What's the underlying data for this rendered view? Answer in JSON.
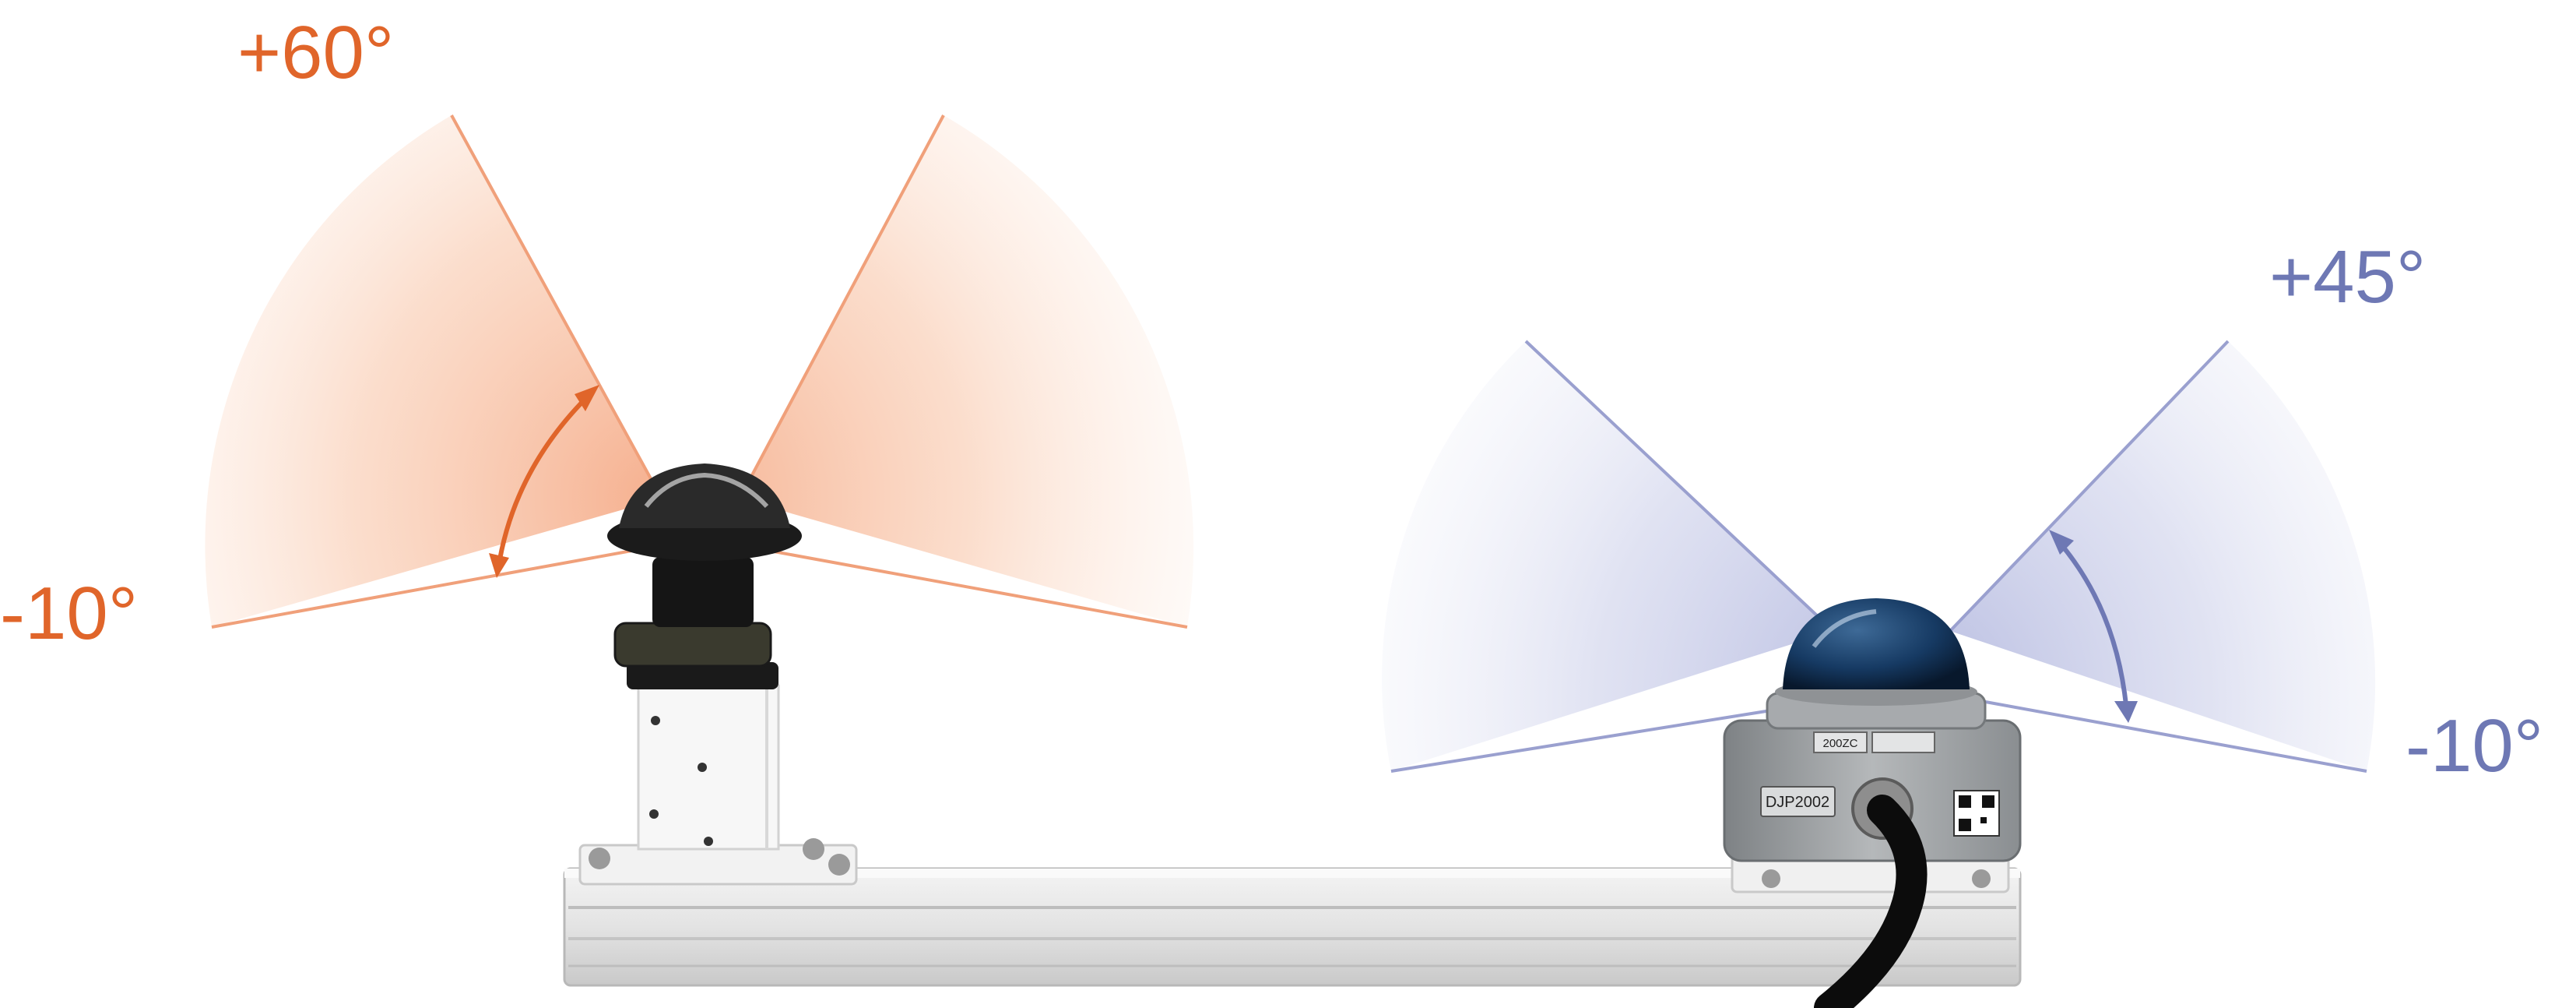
{
  "colors": {
    "left_accent": "#E0652A",
    "right_accent": "#6E78B4",
    "background": "#FFFFFF"
  },
  "left_sensor": {
    "upper_angle_label": "+60°",
    "lower_angle_label": "-10°"
  },
  "right_sensor": {
    "upper_angle_label": "+45°",
    "lower_angle_label": "-10°",
    "housing_label": "DJP2002",
    "housing_sublabel": "200ZC"
  }
}
